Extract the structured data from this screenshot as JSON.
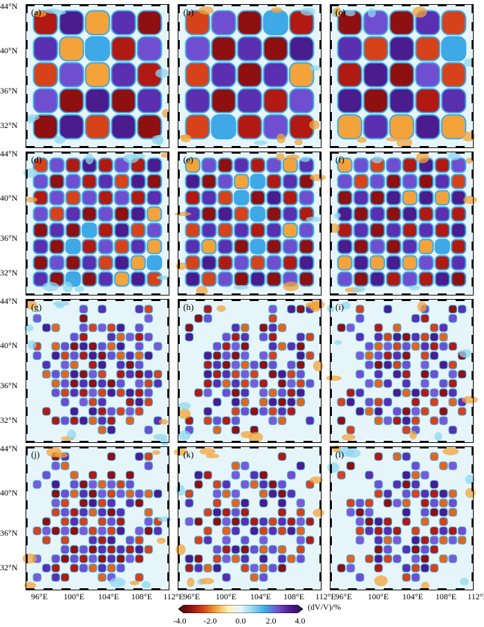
{
  "figure": {
    "lat_labels": [
      "44°N",
      "40°N",
      "36°N",
      "32°N"
    ],
    "lon_labels": [
      "96°E",
      "100°E",
      "104°E",
      "108°E",
      "112°E"
    ],
    "panels": [
      {
        "label": "(a)",
        "pattern": "checker",
        "cells": 5
      },
      {
        "label": "(b)",
        "pattern": "checker",
        "cells": 5
      },
      {
        "label": "(c)",
        "pattern": "checker",
        "cells": 5
      },
      {
        "label": "(d)",
        "pattern": "checker",
        "cells": 8
      },
      {
        "label": "(e)",
        "pattern": "checker",
        "cells": 8
      },
      {
        "label": "(f)",
        "pattern": "checker",
        "cells": 8
      },
      {
        "label": "(g)",
        "pattern": "fine",
        "cells": 14
      },
      {
        "label": "(h)",
        "pattern": "fine",
        "cells": 14
      },
      {
        "label": "(i)",
        "pattern": "fine",
        "cells": 14
      },
      {
        "label": "(j)",
        "pattern": "fine",
        "cells": 14
      },
      {
        "label": "(k)",
        "pattern": "fine",
        "cells": 14
      },
      {
        "label": "(l)",
        "pattern": "fine",
        "cells": 14
      }
    ]
  },
  "colorbar": {
    "ticks": [
      "-4.0",
      "-2.0",
      "0.0",
      "2.0",
      "4.0"
    ],
    "unit": "(dV/V)/%",
    "colors": [
      "#3b0a0a",
      "#8e1010",
      "#d6421a",
      "#f3a33a",
      "#fbf3b4",
      "#e9f6fb",
      "#8fd7ef",
      "#3ea9e6",
      "#6f4fd0",
      "#4a1c8e",
      "#2a0d52"
    ]
  }
}
